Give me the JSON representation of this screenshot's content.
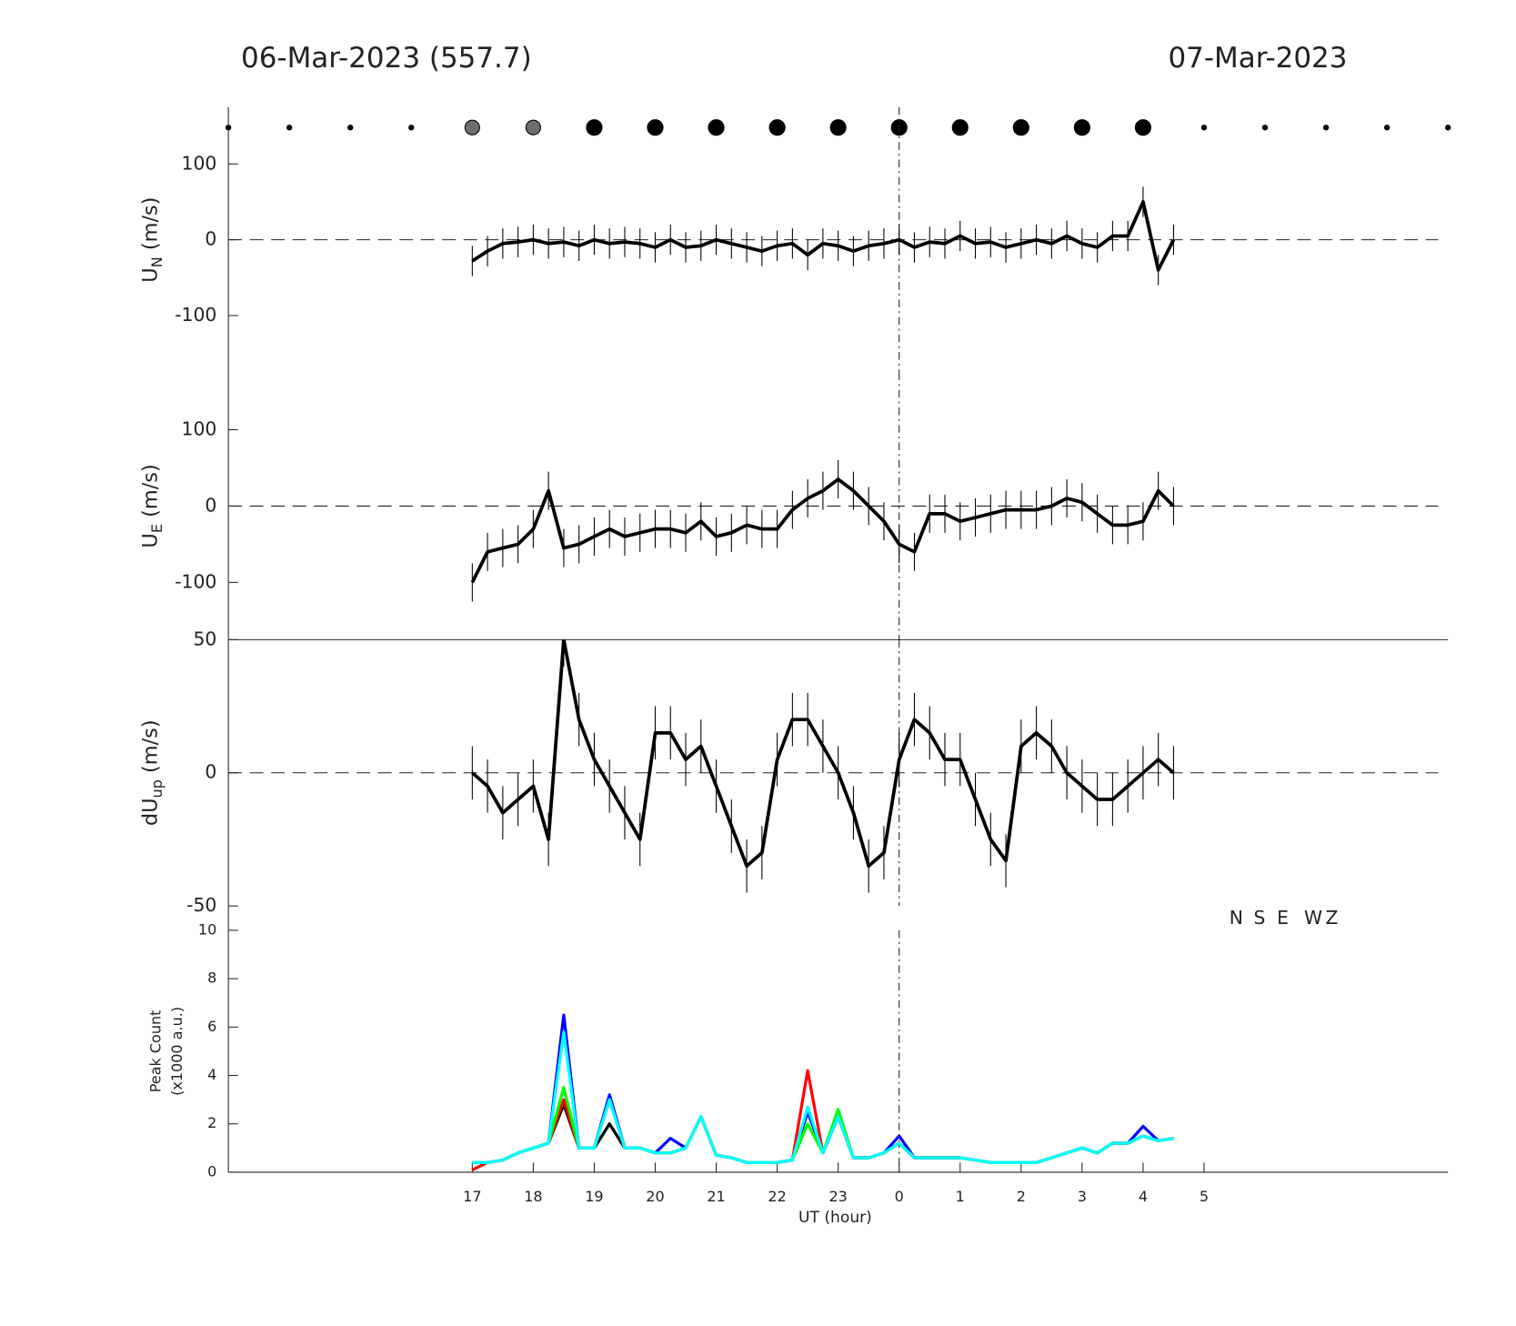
{
  "titles": {
    "left": "06-Mar-2023 (557.7)",
    "right": "07-Mar-2023"
  },
  "chart_data": [
    {
      "type": "errorline",
      "ylabel": [
        "U",
        "N",
        " (m/s)"
      ],
      "xlim": [
        13,
        33
      ],
      "ylim": [
        -175,
        175
      ],
      "yticks": [
        -100,
        0,
        100
      ],
      "hline": 0,
      "vline": 24,
      "color": "#000000",
      "error": 20,
      "x": [
        17,
        17.25,
        17.5,
        17.75,
        18,
        18.25,
        18.5,
        18.75,
        19,
        19.25,
        19.5,
        19.75,
        20,
        20.25,
        20.5,
        20.75,
        21,
        21.25,
        21.5,
        21.75,
        22,
        22.25,
        22.5,
        22.75,
        23,
        23.25,
        23.5,
        23.75,
        24,
        24.25,
        24.5,
        24.75,
        25,
        25.25,
        25.5,
        25.75,
        26,
        26.25,
        26.5,
        26.75,
        27,
        27.25,
        27.5,
        27.75,
        28,
        28.25,
        28.5
      ],
      "values": [
        -28,
        -15,
        -5,
        -3,
        0,
        -5,
        -3,
        -8,
        0,
        -5,
        -3,
        -5,
        -10,
        0,
        -10,
        -8,
        0,
        -5,
        -10,
        -15,
        -8,
        -5,
        -20,
        -5,
        -8,
        -15,
        -8,
        -5,
        0,
        -10,
        -3,
        -5,
        5,
        -5,
        -3,
        -10,
        -5,
        0,
        -5,
        5,
        -5,
        -10,
        5,
        5,
        50,
        -40,
        0
      ]
    },
    {
      "type": "errorline",
      "ylabel": [
        "U",
        "E",
        " (m/s)"
      ],
      "xlim": [
        13,
        33
      ],
      "ylim": [
        -175,
        175
      ],
      "yticks": [
        -100,
        0,
        100
      ],
      "hline": 0,
      "vline": 24,
      "color": "#000000",
      "error": 25,
      "x": [
        17,
        17.25,
        17.5,
        17.75,
        18,
        18.25,
        18.5,
        18.75,
        19,
        19.25,
        19.5,
        19.75,
        20,
        20.25,
        20.5,
        20.75,
        21,
        21.25,
        21.5,
        21.75,
        22,
        22.25,
        22.5,
        22.75,
        23,
        23.25,
        23.5,
        23.75,
        24,
        24.25,
        24.5,
        24.75,
        25,
        25.25,
        25.5,
        25.75,
        26,
        26.25,
        26.5,
        26.75,
        27,
        27.25,
        27.5,
        27.75,
        28,
        28.25,
        28.5
      ],
      "values": [
        -100,
        -60,
        -55,
        -50,
        -30,
        20,
        -55,
        -50,
        -40,
        -30,
        -40,
        -35,
        -30,
        -30,
        -35,
        -20,
        -40,
        -35,
        -25,
        -30,
        -30,
        -5,
        10,
        20,
        35,
        20,
        0,
        -20,
        -50,
        -60,
        -10,
        -10,
        -20,
        -15,
        -10,
        -5,
        -5,
        -5,
        0,
        10,
        5,
        -10,
        -25,
        -25,
        -20,
        20,
        0
      ]
    },
    {
      "type": "errorline",
      "ylabel": [
        "dU",
        "up",
        " (m/s)"
      ],
      "xlim": [
        13,
        33
      ],
      "ylim": [
        -50,
        50
      ],
      "yticks": [
        -50,
        0,
        50
      ],
      "hline": 0,
      "vline": 24,
      "color": "#000000",
      "error": 10,
      "x": [
        17,
        17.25,
        17.5,
        17.75,
        18,
        18.25,
        18.5,
        18.75,
        19,
        19.25,
        19.5,
        19.75,
        20,
        20.25,
        20.5,
        20.75,
        21,
        21.25,
        21.5,
        21.75,
        22,
        22.25,
        22.5,
        22.75,
        23,
        23.25,
        23.5,
        23.75,
        24,
        24.25,
        24.5,
        24.75,
        25,
        25.25,
        25.5,
        25.75,
        26,
        26.25,
        26.5,
        26.75,
        27,
        27.25,
        27.5,
        27.75,
        28,
        28.25,
        28.5
      ],
      "values": [
        0,
        -5,
        -15,
        -10,
        -5,
        -25,
        50,
        20,
        5,
        -5,
        -15,
        -25,
        15,
        15,
        5,
        10,
        -5,
        -20,
        -35,
        -30,
        5,
        20,
        20,
        10,
        0,
        -15,
        -35,
        -30,
        5,
        20,
        15,
        5,
        5,
        -10,
        -25,
        -33,
        10,
        15,
        10,
        0,
        -5,
        -10,
        -10,
        -5,
        0,
        5,
        0
      ]
    },
    {
      "type": "line",
      "ylabel": [
        "Peak Count",
        "(x1000 a.u.)"
      ],
      "xlabel": "UT (hour)",
      "xlim": [
        13,
        33
      ],
      "ylim": [
        0,
        10
      ],
      "yticks": [
        0,
        2,
        4,
        6,
        8,
        10
      ],
      "vline": 24,
      "xticks": [
        17,
        18,
        19,
        20,
        21,
        22,
        23,
        {
          "value": 24,
          "label": "0"
        },
        {
          "value": 25,
          "label": "1"
        },
        {
          "value": 26,
          "label": "2"
        },
        {
          "value": 27,
          "label": "3"
        },
        {
          "value": 28,
          "label": "4"
        },
        {
          "value": 29,
          "label": "5"
        }
      ],
      "x": [
        17,
        17.25,
        17.5,
        17.75,
        18,
        18.25,
        18.5,
        18.75,
        19,
        19.25,
        19.5,
        19.75,
        20,
        20.25,
        20.5,
        20.75,
        21,
        21.25,
        21.5,
        21.75,
        22,
        22.25,
        22.5,
        22.75,
        23,
        23.25,
        23.5,
        23.75,
        24,
        24.25,
        24.5,
        24.75,
        25,
        25.25,
        25.5,
        25.75,
        26,
        26.25,
        26.5,
        26.75,
        27,
        27.25,
        27.5,
        27.75,
        28,
        28.25,
        28.5
      ],
      "series": [
        {
          "name": "N",
          "color": "#000000",
          "values": [
            0.4,
            0.4,
            0.5,
            0.8,
            1.0,
            1.2,
            2.8,
            1.0,
            1.0,
            2.0,
            1.0,
            1.0,
            0.8,
            0.8,
            1.0,
            2.3,
            0.7,
            0.6,
            0.4,
            0.4,
            0.4,
            0.5,
            2.5,
            0.8,
            2.3,
            0.6,
            0.6,
            0.8,
            1.2,
            0.6,
            0.6,
            0.6,
            0.6,
            0.5,
            0.4,
            0.4,
            0.4,
            0.4,
            0.6,
            0.8,
            1.0,
            0.8,
            1.2,
            1.2,
            1.5,
            1.3,
            1.4
          ]
        },
        {
          "name": "S",
          "color": "#ff0000",
          "values": [
            0.1,
            0.4,
            0.5,
            0.8,
            1.0,
            1.2,
            3.0,
            1.0,
            1.0,
            3.0,
            1.0,
            1.0,
            0.8,
            0.8,
            1.0,
            2.3,
            0.7,
            0.6,
            0.4,
            0.4,
            0.4,
            0.5,
            4.2,
            0.8,
            2.3,
            0.6,
            0.6,
            0.8,
            1.2,
            0.6,
            0.6,
            0.6,
            0.6,
            0.5,
            0.4,
            0.4,
            0.4,
            0.4,
            0.6,
            0.8,
            1.0,
            0.8,
            1.2,
            1.2,
            1.5,
            1.3,
            1.4
          ]
        },
        {
          "name": "E",
          "color": "#0000ff",
          "values": [
            0.4,
            0.4,
            0.5,
            0.8,
            1.0,
            1.2,
            6.5,
            1.0,
            1.0,
            3.2,
            1.0,
            1.0,
            0.8,
            1.4,
            1.0,
            2.3,
            0.7,
            0.6,
            0.4,
            0.4,
            0.4,
            0.5,
            2.5,
            0.8,
            2.3,
            0.6,
            0.6,
            0.8,
            1.5,
            0.6,
            0.6,
            0.6,
            0.6,
            0.5,
            0.4,
            0.4,
            0.4,
            0.4,
            0.6,
            0.8,
            1.0,
            0.8,
            1.2,
            1.2,
            1.9,
            1.3,
            1.4
          ]
        },
        {
          "name": "W",
          "color": "#00ff00",
          "values": [
            0.4,
            0.4,
            0.5,
            0.8,
            1.0,
            1.2,
            3.5,
            1.0,
            1.0,
            3.0,
            1.0,
            1.0,
            0.8,
            0.8,
            1.0,
            2.3,
            0.7,
            0.6,
            0.4,
            0.4,
            0.4,
            0.5,
            2.0,
            0.8,
            2.6,
            0.6,
            0.6,
            0.8,
            1.2,
            0.6,
            0.6,
            0.6,
            0.6,
            0.5,
            0.4,
            0.4,
            0.4,
            0.4,
            0.6,
            0.8,
            1.0,
            0.8,
            1.2,
            1.2,
            1.5,
            1.3,
            1.4
          ]
        },
        {
          "name": "Z",
          "color": "#00ffff",
          "values": [
            0.4,
            0.4,
            0.5,
            0.8,
            1.0,
            1.2,
            5.8,
            1.0,
            1.0,
            3.0,
            1.0,
            1.0,
            0.8,
            0.8,
            1.0,
            2.3,
            0.7,
            0.6,
            0.4,
            0.4,
            0.4,
            0.5,
            2.7,
            0.8,
            2.3,
            0.6,
            0.6,
            0.8,
            1.2,
            0.6,
            0.6,
            0.6,
            0.6,
            0.5,
            0.4,
            0.4,
            0.4,
            0.4,
            0.6,
            0.8,
            1.0,
            0.8,
            1.2,
            1.2,
            1.5,
            1.3,
            1.4
          ]
        }
      ]
    }
  ]
}
